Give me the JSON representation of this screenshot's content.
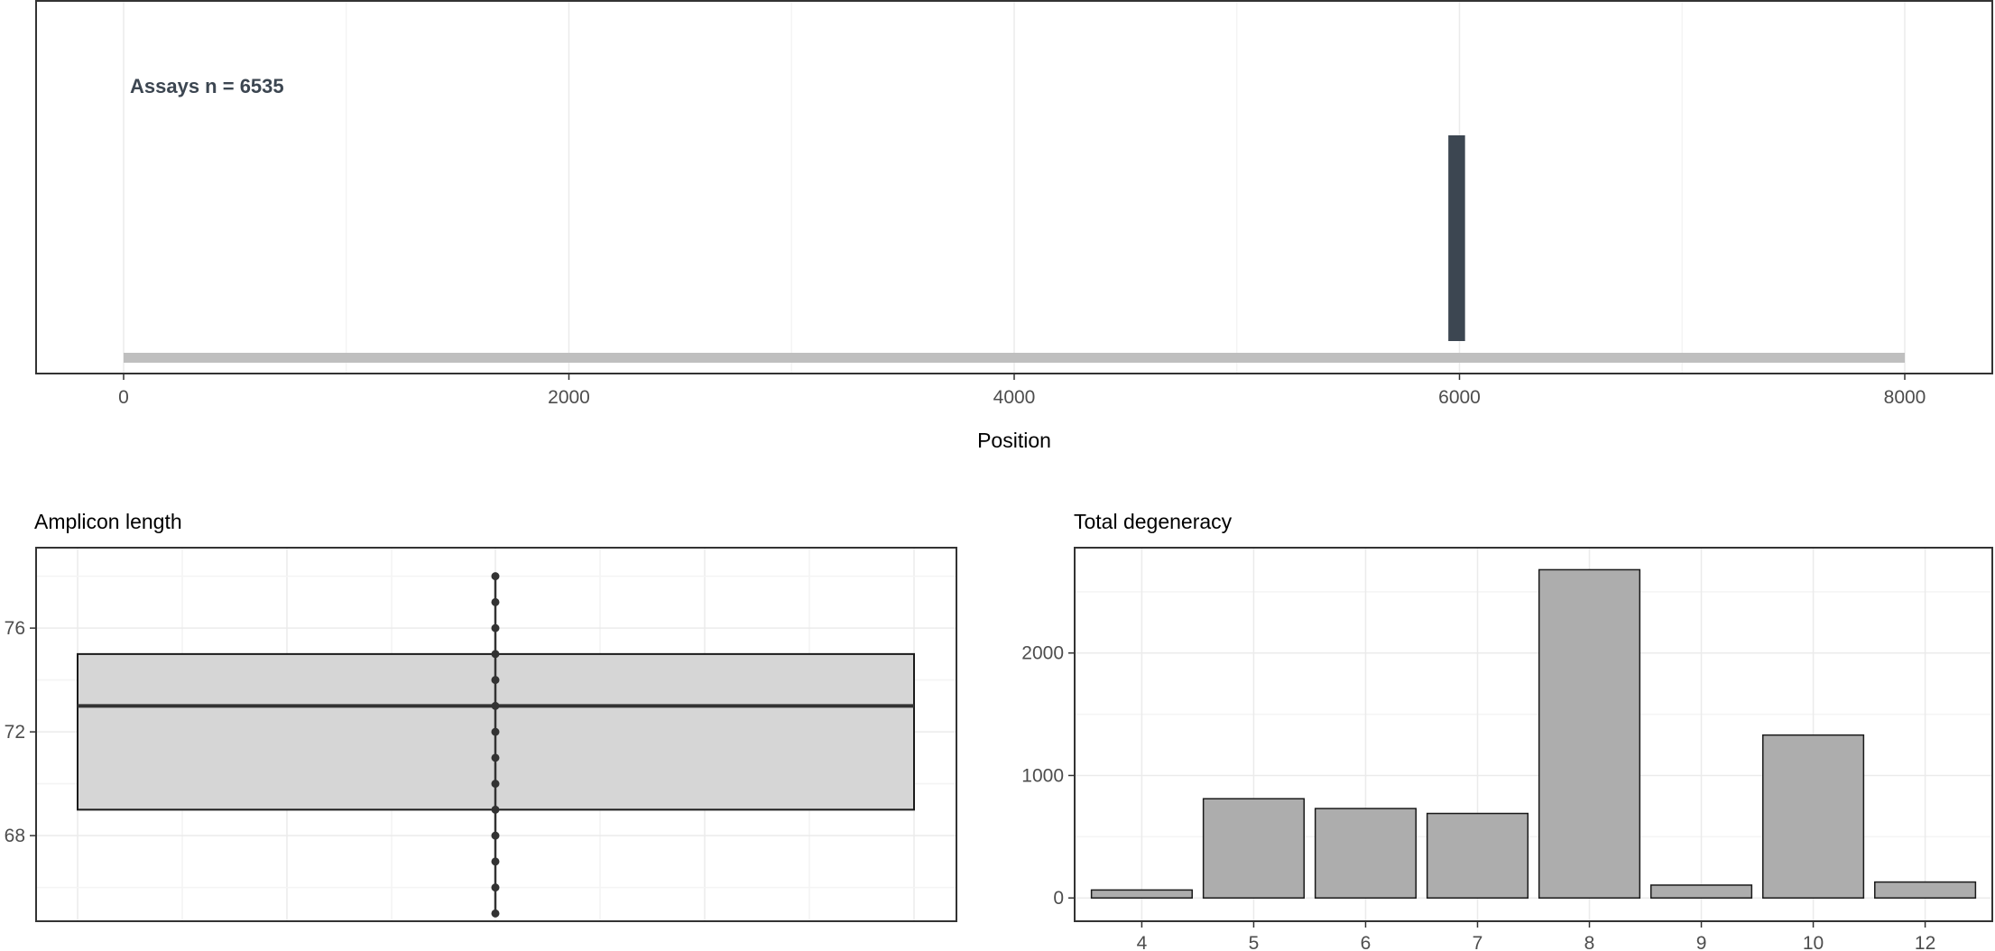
{
  "chart_data": [
    {
      "type": "bar",
      "panel": "position",
      "annotation": "Assays n = 6535",
      "xlabel": "Position",
      "ylabel": "",
      "xlim": [
        0,
        8000
      ],
      "xticks": [
        0,
        2000,
        4000,
        6000,
        8000
      ],
      "genome_range": [
        0,
        8000
      ],
      "assay_start": 5950,
      "assay_end": 6025,
      "grid": true,
      "colors": {
        "assay": "#3c4651",
        "genome": "#bfbfbf"
      }
    },
    {
      "type": "box",
      "title": "Amplicon length",
      "xlabel": "",
      "ylabel": "",
      "ylim": [
        64.7,
        79.1
      ],
      "yticks": [
        68,
        72,
        76
      ],
      "box": {
        "q1": 69,
        "median": 73,
        "q3": 75
      },
      "points": [
        65,
        66,
        67,
        68,
        69,
        70,
        71,
        72,
        73,
        74,
        75,
        76,
        77,
        78
      ],
      "grid": true,
      "colors": {
        "box_fill": "#d6d6d6",
        "points": "#333333"
      }
    },
    {
      "type": "bar",
      "title": "Total degeneracy",
      "xlabel": "",
      "ylabel": "",
      "categories": [
        "4",
        "5",
        "6",
        "7",
        "8",
        "9",
        "10",
        "12"
      ],
      "values": [
        65,
        810,
        730,
        690,
        2680,
        105,
        1330,
        130
      ],
      "ylim": [
        -190,
        2860
      ],
      "yticks": [
        0,
        1000,
        2000
      ],
      "grid": true,
      "colors": {
        "bar_fill": "#adadad",
        "bar_stroke": "#1a1a1a"
      }
    }
  ]
}
